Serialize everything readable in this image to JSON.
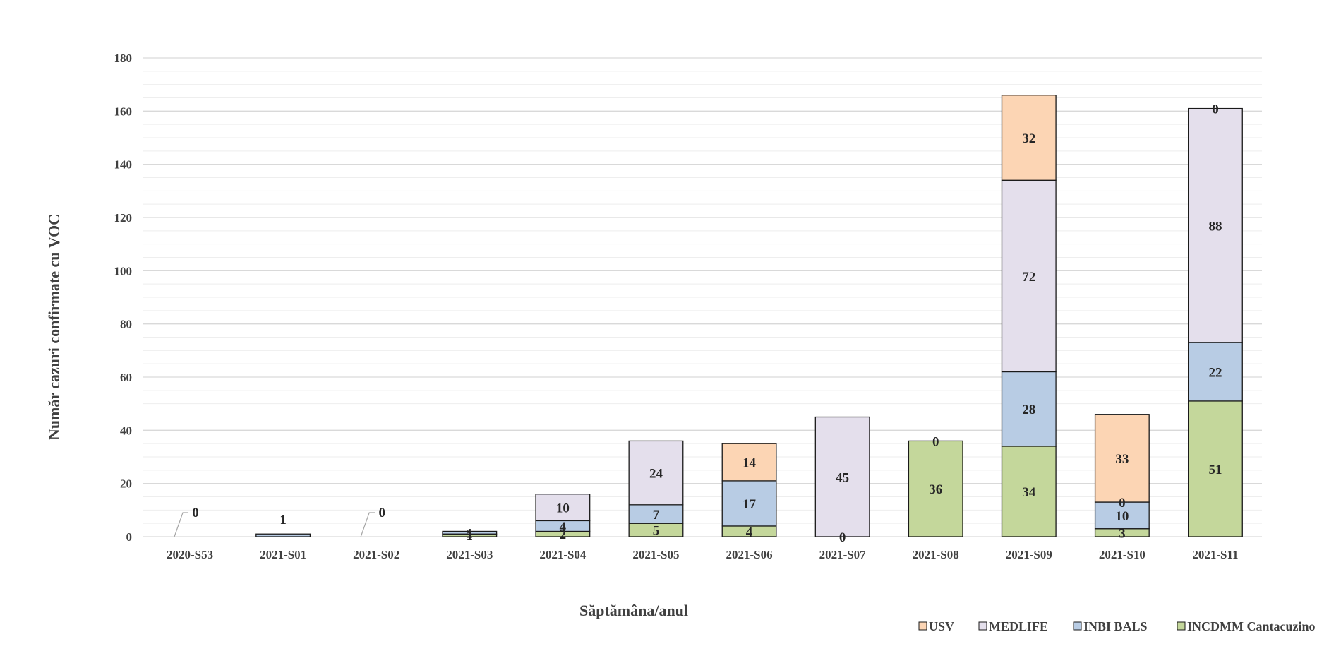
{
  "chart_data": {
    "type": "bar",
    "stacked": true,
    "categories": [
      "2020-S53",
      "2021-S01",
      "2021-S02",
      "2021-S03",
      "2021-S04",
      "2021-S05",
      "2021-S06",
      "2021-S07",
      "2021-S08",
      "2021-S09",
      "2021-S10",
      "2021-S11"
    ],
    "series": [
      {
        "name": "INCDMM Cantacuzino",
        "color": "#c4d79b",
        "values": [
          0,
          0,
          0,
          1,
          2,
          5,
          4,
          0,
          36,
          34,
          3,
          51
        ]
      },
      {
        "name": "INBI BALS",
        "color": "#b8cce4",
        "values": [
          0,
          1,
          0,
          1,
          4,
          7,
          17,
          0,
          0,
          28,
          10,
          22
        ]
      },
      {
        "name": "MEDLIFE",
        "color": "#e4dfec",
        "values": [
          0,
          0,
          0,
          0,
          10,
          24,
          0,
          45,
          0,
          72,
          0,
          88
        ]
      },
      {
        "name": "USV",
        "color": "#fcd5b4",
        "values": [
          0,
          0,
          0,
          0,
          0,
          0,
          14,
          0,
          0,
          32,
          33,
          0
        ]
      }
    ],
    "data_labels": [
      {
        "category": "2020-S53",
        "series": "total",
        "text": "0"
      },
      {
        "category": "2021-S01",
        "series": "INBI BALS",
        "text": "1"
      },
      {
        "category": "2021-S02",
        "series": "total",
        "text": "0"
      },
      {
        "category": "2021-S03",
        "series": "INCDMM Cantacuzino",
        "text": "1"
      },
      {
        "category": "2021-S03",
        "series": "INBI BALS",
        "text": "1"
      },
      {
        "category": "2021-S04",
        "series": "INCDMM Cantacuzino",
        "text": "2"
      },
      {
        "category": "2021-S04",
        "series": "INBI BALS",
        "text": "4"
      },
      {
        "category": "2021-S04",
        "series": "MEDLIFE",
        "text": "10"
      },
      {
        "category": "2021-S05",
        "series": "INCDMM Cantacuzino",
        "text": "5"
      },
      {
        "category": "2021-S05",
        "series": "INBI BALS",
        "text": "7"
      },
      {
        "category": "2021-S05",
        "series": "MEDLIFE",
        "text": "24"
      },
      {
        "category": "2021-S06",
        "series": "INCDMM Cantacuzino",
        "text": "4"
      },
      {
        "category": "2021-S06",
        "series": "INBI BALS",
        "text": "17"
      },
      {
        "category": "2021-S06",
        "series": "USV",
        "text": "14"
      },
      {
        "category": "2021-S07",
        "series": "INCDMM Cantacuzino",
        "text": "0"
      },
      {
        "category": "2021-S07",
        "series": "MEDLIFE",
        "text": "45"
      },
      {
        "category": "2021-S08",
        "series": "INCDMM Cantacuzino",
        "text": "36"
      },
      {
        "category": "2021-S08",
        "series": "INBI BALS",
        "text": "0"
      },
      {
        "category": "2021-S09",
        "series": "INCDMM Cantacuzino",
        "text": "34"
      },
      {
        "category": "2021-S09",
        "series": "INBI BALS",
        "text": "28"
      },
      {
        "category": "2021-S09",
        "series": "MEDLIFE",
        "text": "72"
      },
      {
        "category": "2021-S09",
        "series": "USV",
        "text": "32"
      },
      {
        "category": "2021-S10",
        "series": "INCDMM Cantacuzino",
        "text": "3"
      },
      {
        "category": "2021-S10",
        "series": "INBI BALS",
        "text": "10"
      },
      {
        "category": "2021-S10",
        "series": "MEDLIFE",
        "text": "0"
      },
      {
        "category": "2021-S10",
        "series": "USV",
        "text": "33"
      },
      {
        "category": "2021-S11",
        "series": "INCDMM Cantacuzino",
        "text": "51"
      },
      {
        "category": "2021-S11",
        "series": "INBI BALS",
        "text": "22"
      },
      {
        "category": "2021-S11",
        "series": "MEDLIFE",
        "text": "88"
      },
      {
        "category": "2021-S11",
        "series": "USV",
        "text": "0"
      }
    ],
    "title": "",
    "xlabel": "Săptămâna/anul",
    "ylabel": "Număr cazuri confirmate  cu VOC",
    "ylim": [
      0,
      180
    ],
    "yticks": [
      0,
      20,
      40,
      60,
      80,
      100,
      120,
      140,
      160,
      180
    ],
    "grid": true,
    "legend_position": "bottom-right",
    "legend_order": [
      "USV",
      "MEDLIFE",
      "INBI BALS",
      "INCDMM Cantacuzino"
    ]
  }
}
